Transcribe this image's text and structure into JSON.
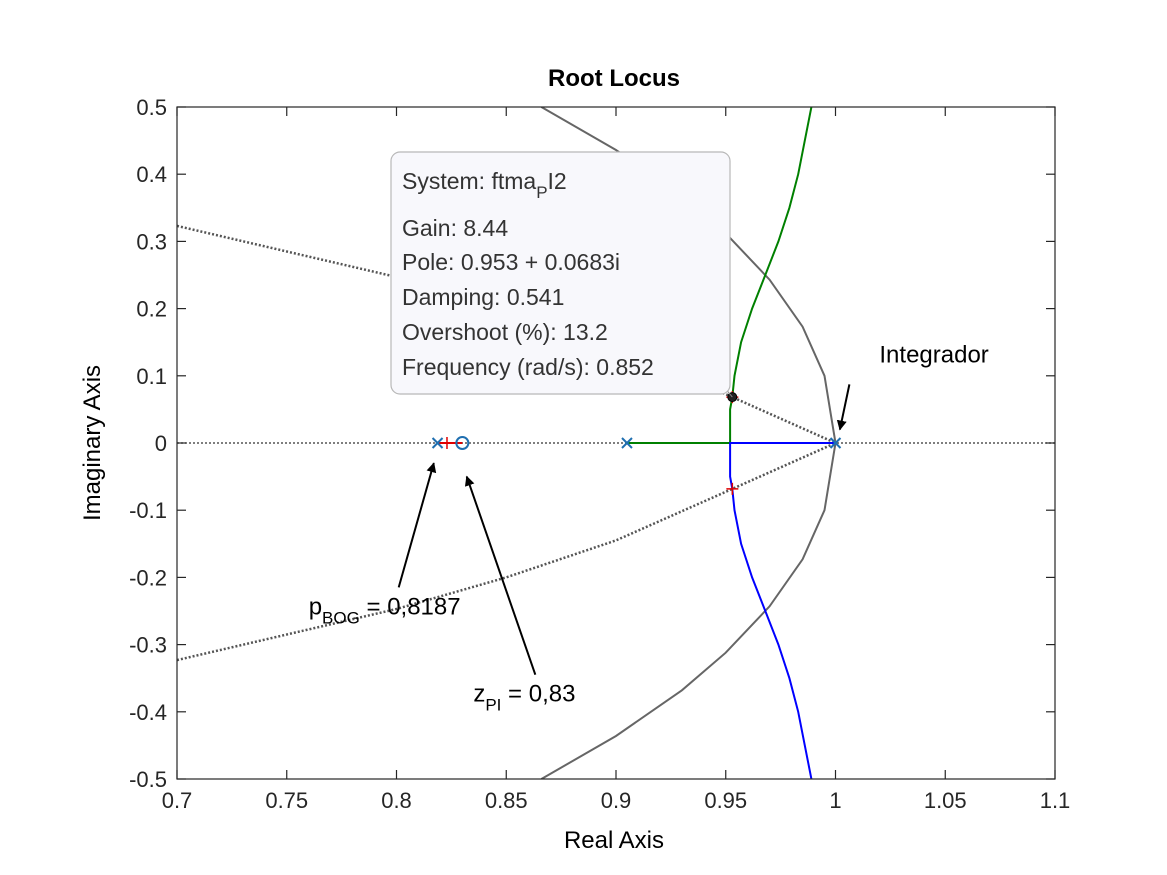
{
  "chart_data": {
    "type": "line",
    "title": "Root Locus",
    "xlabel": "Real Axis",
    "ylabel": "Imaginary Axis",
    "xlim": [
      0.7,
      1.1
    ],
    "ylim": [
      -0.5,
      0.5
    ],
    "xticks": [
      0.7,
      0.75,
      0.8,
      0.85,
      0.9,
      0.95,
      1,
      1.05,
      1.1
    ],
    "xtick_labels": [
      "0.7",
      "0.75",
      "0.8",
      "0.85",
      "0.9",
      "0.95",
      "1",
      "1.05",
      "1.1"
    ],
    "yticks": [
      0.5,
      0.4,
      0.3,
      0.2,
      0.1,
      0,
      -0.1,
      -0.2,
      -0.3,
      -0.4,
      -0.5
    ],
    "ytick_labels": [
      "0.5",
      "0.4",
      "0.3",
      "0.2",
      "0.1",
      "0",
      "-0.1",
      "-0.2",
      "-0.3",
      "-0.4",
      "-0.5"
    ],
    "grid": false,
    "poles": [
      [
        0.8187,
        0
      ],
      [
        0.905,
        0
      ],
      [
        1.0,
        0
      ]
    ],
    "zeros": [
      [
        0.83,
        0
      ]
    ],
    "series": [
      {
        "color": "#008000",
        "points": [
          [
            0.905,
            0
          ],
          [
            0.952,
            0
          ],
          [
            0.952,
            0.05
          ],
          [
            0.953,
            0.0683
          ],
          [
            0.954,
            0.1
          ],
          [
            0.957,
            0.15
          ],
          [
            0.962,
            0.2
          ],
          [
            0.968,
            0.25
          ],
          [
            0.974,
            0.3
          ],
          [
            0.979,
            0.35
          ],
          [
            0.983,
            0.4
          ],
          [
            0.986,
            0.45
          ],
          [
            0.989,
            0.5
          ]
        ]
      },
      {
        "color": "#0000ff",
        "points": [
          [
            1.0,
            0
          ],
          [
            0.952,
            0
          ],
          [
            0.952,
            -0.05
          ],
          [
            0.953,
            -0.0683
          ],
          [
            0.954,
            -0.1
          ],
          [
            0.957,
            -0.15
          ],
          [
            0.962,
            -0.2
          ],
          [
            0.968,
            -0.25
          ],
          [
            0.974,
            -0.3
          ],
          [
            0.979,
            -0.35
          ],
          [
            0.983,
            -0.4
          ],
          [
            0.986,
            -0.45
          ],
          [
            0.989,
            -0.5
          ]
        ]
      },
      {
        "color": "#e00000",
        "points": [
          [
            0.8187,
            0
          ],
          [
            0.83,
            0
          ]
        ]
      }
    ],
    "unit_circle": {
      "color": "#666666",
      "points": [
        [
          0.866,
          0.5
        ],
        [
          0.9,
          0.436
        ],
        [
          0.93,
          0.368
        ],
        [
          0.95,
          0.312
        ],
        [
          0.97,
          0.243
        ],
        [
          0.985,
          0.173
        ],
        [
          0.995,
          0.1
        ],
        [
          1.0,
          0
        ],
        [
          0.995,
          -0.1
        ],
        [
          0.985,
          -0.173
        ],
        [
          0.97,
          -0.243
        ],
        [
          0.95,
          -0.312
        ],
        [
          0.93,
          -0.368
        ],
        [
          0.9,
          -0.436
        ],
        [
          0.866,
          -0.5
        ]
      ]
    },
    "damping_lines": {
      "color": "#555555",
      "points_upper": [
        [
          0.7,
          0.323
        ],
        [
          0.75,
          0.285
        ],
        [
          0.8,
          0.247
        ],
        [
          0.85,
          0.2
        ],
        [
          0.9,
          0.145
        ],
        [
          0.953,
          0.0683
        ],
        [
          1.0,
          0
        ]
      ],
      "points_lower": [
        [
          0.7,
          -0.323
        ],
        [
          0.75,
          -0.285
        ],
        [
          0.8,
          -0.247
        ],
        [
          0.85,
          -0.2
        ],
        [
          0.9,
          -0.145
        ],
        [
          0.953,
          -0.0683
        ],
        [
          1.0,
          0
        ]
      ]
    },
    "selected_point": [
      0.953,
      0.0683
    ],
    "gain_markers": [
      [
        0.823,
        0
      ],
      [
        0.953,
        0.0683
      ],
      [
        0.953,
        -0.0683
      ]
    ],
    "datatip": {
      "system_label": "System: ftma",
      "system_sub": "P",
      "system_suffix": "I2",
      "gain": "Gain: 8.44",
      "pole": "Pole: 0.953 + 0.0683i",
      "damping": "Damping: 0.541",
      "overshoot": "Overshoot (%): 13.2",
      "frequency": "Frequency (rad/s): 0.852"
    },
    "annotations": [
      {
        "text": "Integrador",
        "target": [
          1.002,
          0.02
        ],
        "label_at": [
          1.02,
          0.12
        ]
      },
      {
        "text": "p",
        "sub": "BOG",
        "suffix": " = 0,8187",
        "target": [
          0.817,
          -0.03
        ],
        "label_at": [
          0.76,
          -0.255
        ]
      },
      {
        "text": "z",
        "sub": "PI",
        "suffix": " = 0,83",
        "target": [
          0.832,
          -0.05
        ],
        "label_at": [
          0.835,
          -0.385
        ]
      }
    ]
  }
}
